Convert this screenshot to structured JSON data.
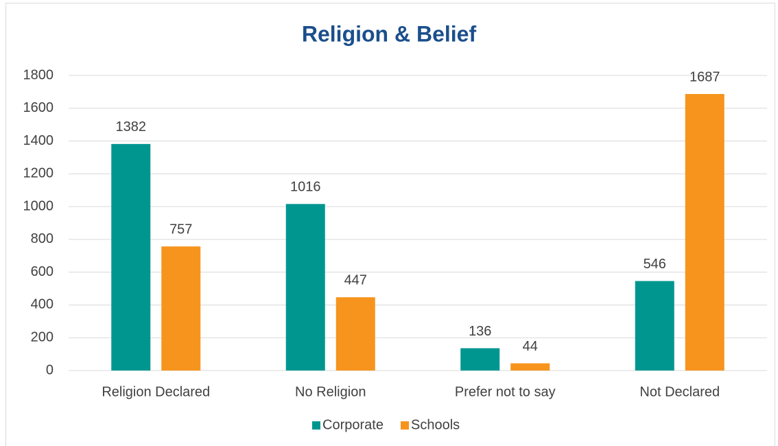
{
  "chart_data": {
    "type": "bar",
    "title": "Religion & Belief",
    "categories": [
      "Religion Declared",
      "No Religion",
      "Prefer not to say",
      "Not Declared"
    ],
    "series": [
      {
        "name": "Corporate",
        "color": "#009690",
        "values": [
          1382,
          1016,
          136,
          546
        ]
      },
      {
        "name": "Schools",
        "color": "#f7941d",
        "values": [
          757,
          447,
          44,
          1687
        ]
      }
    ],
    "ylim": [
      0,
      1800
    ],
    "yticks": [
      0,
      200,
      400,
      600,
      800,
      1000,
      1200,
      1400,
      1600,
      1800
    ],
    "grid": true,
    "legend": "bottom"
  }
}
